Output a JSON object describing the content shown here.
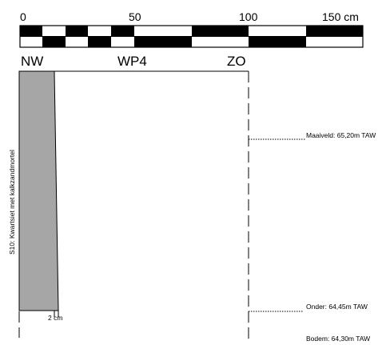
{
  "scale": {
    "ticks": [
      "0",
      "50",
      "100",
      "150 cm"
    ]
  },
  "section": {
    "left_dir": "NW",
    "name": "WP4",
    "right_dir": "ZO"
  },
  "layer": {
    "label": "S10: Kwartsiet met kalkzandmortel",
    "fill": "#a6a6a6"
  },
  "width_note": "2 cm",
  "levels": [
    {
      "label": "Maaiveld: 65,20m TAW"
    },
    {
      "label": "Onder: 64,45m TAW"
    },
    {
      "label": "Bodem: 64,30m TAW"
    }
  ]
}
